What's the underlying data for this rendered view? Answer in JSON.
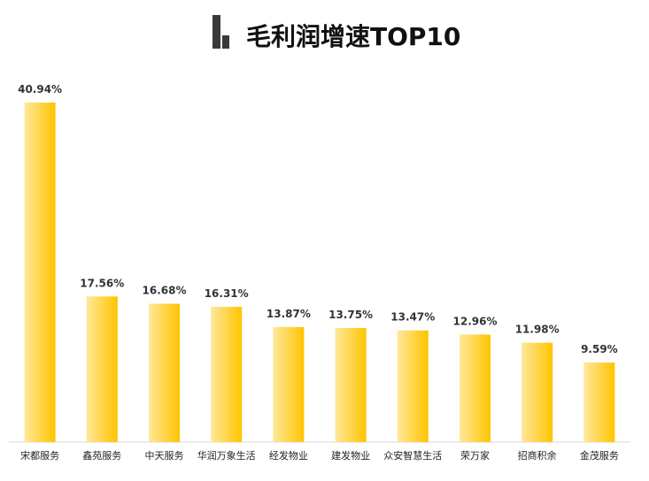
{
  "chart_data": {
    "type": "bar",
    "title": "毛利润增速TOP10",
    "categories": [
      "宋都服务",
      "鑫苑服务",
      "中天服务",
      "华润万象生活",
      "经发物业",
      "建发物业",
      "众安智慧生活",
      "荣万家",
      "招商积余",
      "金茂服务"
    ],
    "values": [
      40.94,
      17.56,
      16.68,
      16.31,
      13.87,
      13.75,
      13.47,
      12.96,
      11.98,
      9.59
    ],
    "value_labels": [
      "40.94%",
      "17.56%",
      "16.68%",
      "16.31%",
      "13.87%",
      "13.75%",
      "13.47%",
      "12.96%",
      "11.98%",
      "9.59%"
    ],
    "unit": "%",
    "xlabel": "",
    "ylabel": "",
    "ylim": [
      0,
      40.94
    ],
    "grid": false,
    "legend": "none",
    "colors": {
      "bar_gradient_start": "#FFE89A",
      "bar_gradient_end": "#FFC400",
      "title_icon": "#3A3A3A",
      "axis": "#D9D9D9"
    },
    "title_icon": "bar-chart-icon"
  }
}
